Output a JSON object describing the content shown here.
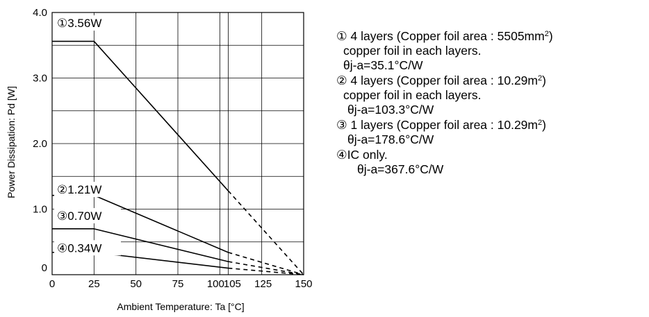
{
  "chart_data": {
    "type": "line",
    "title": "",
    "xlabel": "Ambient Temperature: Ta [°C]",
    "ylabel": "Power Dissipation: Pd [W]",
    "xlim": [
      0,
      150
    ],
    "ylim": [
      0,
      4.0
    ],
    "x_ticks": [
      0,
      25,
      50,
      75,
      100,
      105,
      125,
      150
    ],
    "x_tick_labels": [
      "0",
      "25",
      "50",
      "75",
      "100",
      "105",
      "125",
      "150"
    ],
    "y_ticks": [
      0,
      1.0,
      2.0,
      3.0,
      4.0
    ],
    "y_tick_labels": [
      "0",
      "1.0",
      "2.0",
      "3.0",
      "4.0"
    ],
    "grid": true,
    "series": [
      {
        "name": "①3.56W",
        "points": [
          [
            0,
            3.56
          ],
          [
            25,
            3.56
          ],
          [
            105,
            1.28
          ],
          [
            150,
            0
          ]
        ],
        "solid_until_x": 105
      },
      {
        "name": "②1.21W",
        "points": [
          [
            0,
            1.21
          ],
          [
            25,
            1.21
          ],
          [
            105,
            0.34
          ],
          [
            150,
            0
          ]
        ],
        "solid_until_x": 105
      },
      {
        "name": "③0.70W",
        "points": [
          [
            0,
            0.7
          ],
          [
            25,
            0.7
          ],
          [
            105,
            0.2
          ],
          [
            150,
            0
          ]
        ],
        "solid_until_x": 105
      },
      {
        "name": "④0.34W",
        "points": [
          [
            0,
            0.34
          ],
          [
            25,
            0.34
          ],
          [
            105,
            0.1
          ],
          [
            150,
            0
          ]
        ],
        "solid_until_x": 105
      }
    ],
    "annotations": [
      "①3.56W",
      "②1.21W",
      "③0.70W",
      "④0.34W"
    ]
  },
  "legend": {
    "e1": {
      "l1a": "① 4 layers (Copper foil area : 5505mm",
      "l1sup": "2",
      "l1b": ")",
      "l2": "copper foil in each layers.",
      "l3": "θj-a=35.1°C/W"
    },
    "e2": {
      "l1a": "②  4 layers (Copper foil area : 10.29m",
      "l1sup": "2",
      "l1b": ")",
      "l2": "copper foil in each layers.",
      "l3": "θj-a=103.3°C/W"
    },
    "e3": {
      "l1a": "③   1 layers (Copper foil area : 10.29m",
      "l1sup": "2",
      "l1b": ")",
      "l2": "θj-a=178.6°C/W"
    },
    "e4": {
      "l1": "④IC only.",
      "l2": "θj-a=367.6°C/W"
    }
  }
}
